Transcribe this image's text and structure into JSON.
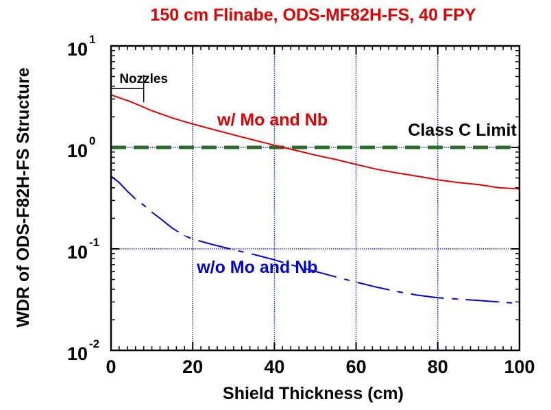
{
  "chart_data": {
    "type": "line",
    "title": "150 cm Flinabe, ODS-MF82H-FS, 40 FPY",
    "xlabel": "Shield Thickness (cm)",
    "ylabel": "WDR of ODS-F82H-FS Structure",
    "xlim": [
      0,
      100
    ],
    "ylim": [
      0.01,
      10
    ],
    "yscale": "log",
    "grid": true,
    "x_ticks": [
      "0",
      "20",
      "40",
      "60",
      "80",
      "100"
    ],
    "y_ticks": [
      {
        "base": "10",
        "exp": "1",
        "value": 10
      },
      {
        "base": "10",
        "exp": "0",
        "value": 1
      },
      {
        "base": "10",
        "exp": "-1",
        "value": 0.1
      },
      {
        "base": "10",
        "exp": "-2",
        "value": 0.01
      }
    ],
    "series": [
      {
        "name": "w/ Mo and Nb",
        "color": "#dd0000",
        "style": "solid",
        "x": [
          0,
          5,
          10,
          15,
          20,
          25,
          30,
          35,
          40,
          45,
          50,
          55,
          60,
          65,
          70,
          75,
          80,
          85,
          90,
          95,
          100
        ],
        "y": [
          3.3,
          2.8,
          2.3,
          1.95,
          1.7,
          1.5,
          1.33,
          1.18,
          1.05,
          0.94,
          0.84,
          0.76,
          0.68,
          0.61,
          0.56,
          0.52,
          0.48,
          0.45,
          0.43,
          0.4,
          0.39
        ]
      },
      {
        "name": "w/o Mo and Nb",
        "color": "#0000cc",
        "style": "dashed",
        "x": [
          0,
          2,
          4,
          6,
          8,
          10,
          12,
          15,
          18,
          20,
          25,
          30,
          35,
          40,
          45,
          50,
          55,
          60,
          65,
          70,
          75,
          80,
          85,
          90,
          95,
          100
        ],
        "y": [
          0.52,
          0.45,
          0.37,
          0.31,
          0.27,
          0.23,
          0.2,
          0.16,
          0.135,
          0.125,
          0.11,
          0.098,
          0.088,
          0.078,
          0.068,
          0.06,
          0.053,
          0.047,
          0.042,
          0.038,
          0.035,
          0.033,
          0.032,
          0.031,
          0.03,
          0.029
        ]
      }
    ],
    "reference_lines": [
      {
        "name": "Class C Limit",
        "y": 1,
        "color": "#2d6b2d",
        "style": "dashed"
      }
    ],
    "annotations": [
      {
        "text": "Nozzles",
        "x": 8,
        "y": 4.3
      },
      {
        "text": "w/ Mo and Nb",
        "x": 26,
        "y": 1.65
      },
      {
        "text": "Class C Limit",
        "x": 86,
        "y": 1.3
      },
      {
        "text": "w/o Mo and Nb",
        "x": 21,
        "y": 0.058
      }
    ]
  }
}
